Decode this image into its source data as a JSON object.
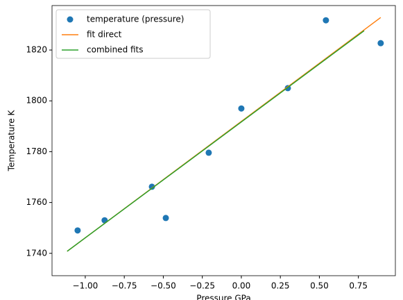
{
  "chart_data": {
    "type": "line",
    "x_label": "Pressure GPa",
    "y_label": "Temperature K",
    "series": [
      {
        "name": "temperature (pressure)",
        "color": "#1f77b4",
        "style": "marker",
        "x": [
          -1.049,
          -0.876,
          -0.573,
          -0.484,
          -0.209,
          0.0,
          0.298,
          0.542,
          0.893
        ],
        "values": [
          1749,
          1753,
          1766.2,
          1753.9,
          1779.6,
          1797,
          1805,
          1831.7,
          1822.7
        ]
      },
      {
        "name": "fit direct",
        "color": "#ff7f0e",
        "style": "line",
        "x": [
          -1.116,
          0.893
        ],
        "values": [
          1740.8,
          1832.8
        ]
      },
      {
        "name": "combined fits",
        "color": "#2ca02c",
        "style": "line",
        "x": [
          -1.116,
          0.787
        ],
        "values": [
          1740.8,
          1827.6
        ]
      }
    ],
    "xlim": [
      -1.213,
      0.987
    ],
    "ylim": [
      1731.2,
      1837.5
    ],
    "xticks": [
      {
        "value": -1.0,
        "label": "−1.00"
      },
      {
        "value": -0.75,
        "label": "−0.75"
      },
      {
        "value": -0.5,
        "label": "−0.50"
      },
      {
        "value": -0.25,
        "label": "−0.25"
      },
      {
        "value": 0,
        "label": "0.00"
      },
      {
        "value": 0.25,
        "label": "0.25"
      },
      {
        "value": 0.5,
        "label": "0.50"
      },
      {
        "value": 0.75,
        "label": "0.75"
      }
    ],
    "yticks": [
      1740,
      1760,
      1780,
      1800,
      1820
    ],
    "legend": "upper left",
    "grid": false
  }
}
